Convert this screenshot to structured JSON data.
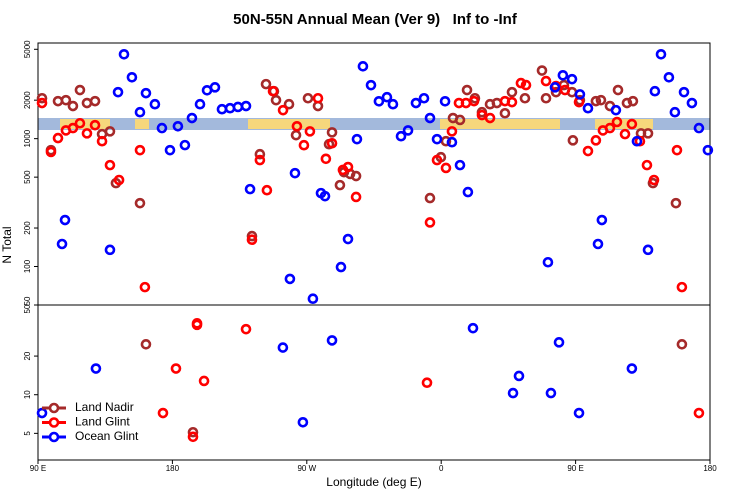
{
  "chart_data": {
    "type": "scatter",
    "title": "50N-55N Annual Mean (Ver 9)   Inf to -Inf",
    "xlabel": "Longitude (deg E)",
    "ylabel": "N Total",
    "log_scale": true,
    "legend": "lower left",
    "xlim": [
      90,
      540
    ],
    "xticks": [
      {
        "value": 90,
        "label": "90 E"
      },
      180,
      {
        "value": 270,
        "label": "90 W"
      },
      {
        "value": 360,
        "label": "0"
      },
      {
        "value": 450,
        "label": "90 E"
      },
      {
        "value": 540,
        "label": "180"
      }
    ],
    "panels": [
      {
        "ylim": [
          50,
          5600
        ],
        "yticks": [
          50,
          100,
          200,
          500,
          1000,
          2000,
          5000
        ]
      },
      {
        "ylim": [
          3.1,
          50
        ],
        "yticks": [
          5,
          10,
          20,
          50
        ]
      }
    ],
    "series": [
      {
        "name": "Land Nadir",
        "color": "#a52a2a",
        "x": [
          92.7,
          98.7,
          103.4,
          108.7,
          113.4,
          118.1,
          122.8,
          128.2,
          132.9,
          138.2,
          142.2,
          158.3,
          233.3,
          238.6,
          242.7,
          248,
          249.4,
          258.1,
          262.8,
          270.8,
          277.5,
          284.9,
          286.9,
          292.2,
          294.9,
          299,
          303,
          352.5,
          359.8,
          363.2,
          367.9,
          372.6,
          377.3,
          382.6,
          387.3,
          392.7,
          397.3,
          402.7,
          407.4,
          416.1,
          427.5,
          430.2,
          436.9,
          442.2,
          447.6,
          452.9,
          448.2,
          463.6,
          467,
          473,
          478.4,
          484.4,
          488.4,
          493.8,
          498.5,
          501.8,
          517.2,
          162.3,
          193.8,
          521.2
        ],
        "values": [
          2070,
          813,
          1965,
          2000,
          1800,
          2400,
          1900,
          1965,
          1085,
          1140,
          449,
          313,
          173,
          756,
          2670,
          2350,
          2000,
          1860,
          1065,
          2070,
          1800,
          905,
          1120,
          433,
          547,
          530,
          510,
          343,
          716,
          955,
          1450,
          1400,
          2400,
          2070,
          1610,
          1860,
          1900,
          1580,
          2310,
          2070,
          3410,
          2070,
          2310,
          2625,
          2310,
          2000,
          970,
          1965,
          2000,
          1800,
          2400,
          1900,
          1965,
          1100,
          1100,
          449,
          313,
          24.7,
          5.1,
          24.7
        ]
      },
      {
        "name": "Land Glint",
        "color": "#ff0000",
        "x": [
          92.7,
          98.7,
          103.4,
          108.7,
          113.4,
          118.1,
          122.8,
          128.2,
          132.9,
          138.2,
          144.3,
          158.3,
          161.6,
          238.6,
          243.3,
          233.3,
          247.4,
          254.1,
          263.4,
          268.1,
          272.1,
          277.5,
          282.8,
          286.9,
          294.2,
          297.6,
          303,
          352.5,
          357.2,
          363.2,
          367.2,
          371.9,
          376.6,
          382,
          387.3,
          392.7,
          402.7,
          407.4,
          413.4,
          416.8,
          430.2,
          436.9,
          442.9,
          452.3,
          458.3,
          463.6,
          468.3,
          473,
          477.7,
          483.1,
          487.7,
          493.1,
          497.8,
          502.5,
          517.9,
          521.2,
          173.7,
          182.4,
          196.5,
          196.5,
          201.2,
          229.3,
          350.5,
          532.6,
          193.8
        ],
        "values": [
          1900,
          787,
          1010,
          1160,
          1210,
          1320,
          1100,
          1275,
          955,
          621,
          475,
          813,
          69,
          680,
          395,
          162,
          2350,
          1670,
          1250,
          889,
          1140,
          2070,
          696,
          920,
          570,
          600,
          350,
          221,
          680,
          590,
          1140,
          1900,
          1900,
          1965,
          1528,
          1450,
          1965,
          1930,
          2720,
          2625,
          2820,
          2580,
          2400,
          1930,
          800,
          970,
          1160,
          1210,
          1350,
          1085,
          1300,
          955,
          621,
          475,
          813,
          69,
          7.2,
          16,
          36,
          35,
          12.8,
          32.4,
          12.4,
          7.2,
          4.7
        ]
      },
      {
        "name": "Ocean Glint",
        "color": "#0000ff",
        "x": [
          106.1,
          108.1,
          138.2,
          143.6,
          147.6,
          152.9,
          158.3,
          162.3,
          168.3,
          173,
          178.4,
          183.7,
          188.4,
          193.1,
          198.5,
          203.2,
          208.5,
          213.2,
          218.6,
          223.9,
          229.3,
          232,
          258.7,
          262.1,
          274.1,
          279.5,
          282.2,
          292.9,
          297.6,
          303.6,
          307.6,
          313,
          318.3,
          323.7,
          327.7,
          333.1,
          337.8,
          343.1,
          348.5,
          352.5,
          357.2,
          362.6,
          367.2,
          372.6,
          377.9,
          431.5,
          436.2,
          441.5,
          447.6,
          452.9,
          458.3,
          465,
          467.6,
          477,
          491.1,
          498.5,
          503.1,
          507.2,
          512.5,
          516.5,
          522.6,
          527.9,
          532.6,
          538.6,
          92.7,
          128.8,
          254,
          286.9,
          267.4,
          381.3,
          408.1,
          412.1,
          433.5,
          438.9,
          452.3,
          487.7
        ],
        "values": [
          150,
          231,
          135,
          2310,
          4570,
          3020,
          1610,
          2270,
          1860,
          1210,
          813,
          1250,
          890,
          1450,
          1860,
          2390,
          2520,
          1700,
          1730,
          1770,
          1800,
          403,
          80,
          537,
          56,
          375,
          355,
          99,
          164,
          991,
          3680,
          2620,
          1960,
          2110,
          1860,
          1045,
          1160,
          1900,
          2070,
          1450,
          991,
          1960,
          938,
          621,
          382,
          108,
          2520,
          3130,
          2920,
          2220,
          1730,
          150,
          231,
          1670,
          955,
          135,
          2350,
          4570,
          3020,
          1610,
          2310,
          1900,
          1210,
          813,
          7.2,
          16,
          23.3,
          26.5,
          6.1,
          33,
          10.3,
          14,
          10.3,
          25.6,
          7.2,
          16
        ]
      }
    ]
  }
}
